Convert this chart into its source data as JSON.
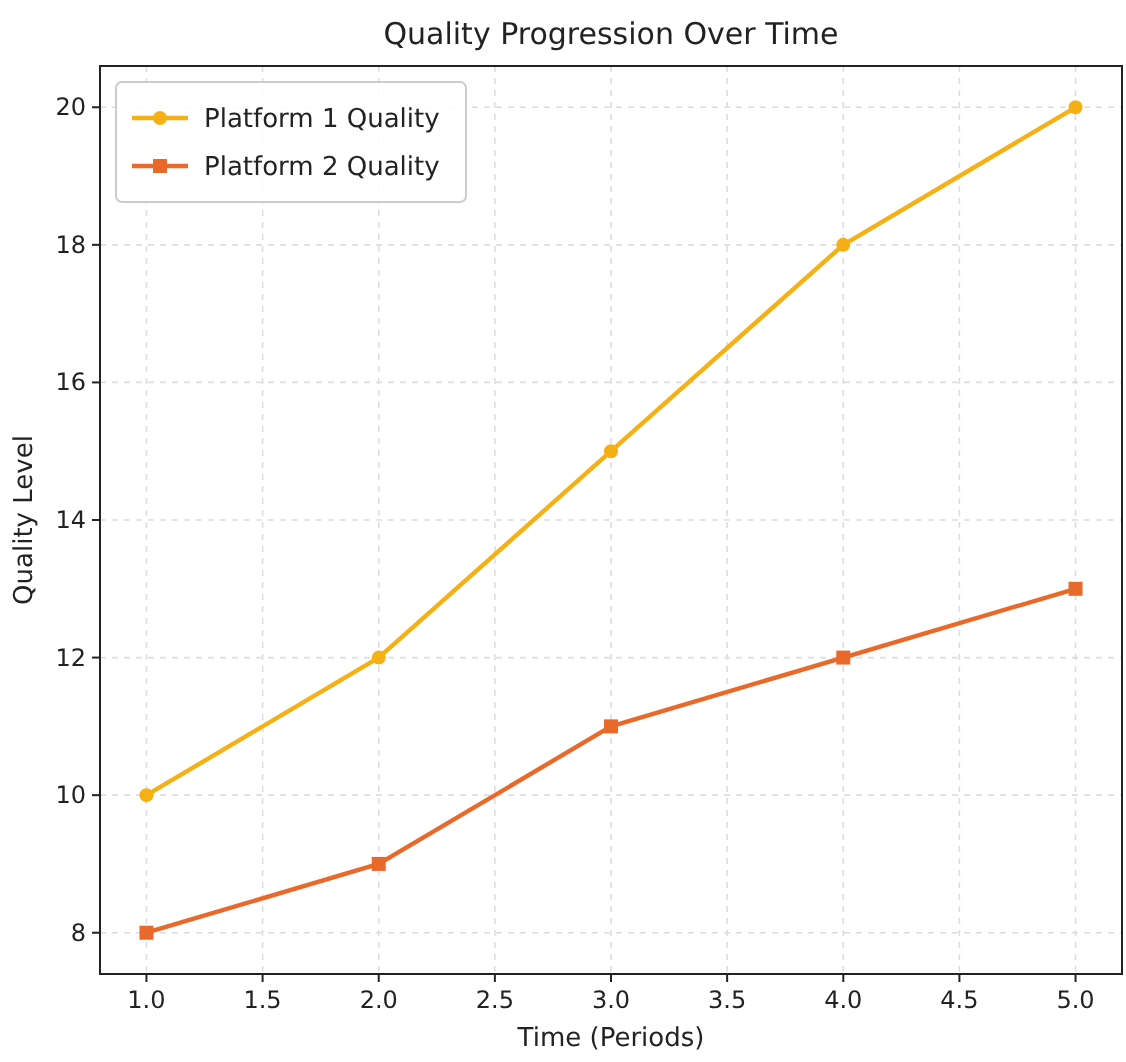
{
  "chart_data": {
    "type": "line",
    "title": "Quality Progression Over Time",
    "xlabel": "Time (Periods)",
    "ylabel": "Quality Level",
    "x": [
      1,
      2,
      3,
      4,
      5
    ],
    "series": [
      {
        "name": "Platform 1 Quality",
        "color": "#f4b014",
        "values": [
          10,
          12,
          15,
          18,
          20
        ],
        "marker": "circle"
      },
      {
        "name": "Platform 2 Quality",
        "color": "#e8692a",
        "values": [
          8,
          9,
          11,
          12,
          13
        ],
        "marker": "square"
      }
    ],
    "xlim": [
      0.8,
      5.2
    ],
    "xticks": [
      {
        "value": 1,
        "label": "1.0"
      },
      {
        "value": 1.5,
        "label": "1.5"
      },
      {
        "value": 2,
        "label": "2.0"
      },
      {
        "value": 2.5,
        "label": "2.5"
      },
      {
        "value": 3,
        "label": "3.0"
      },
      {
        "value": 3.5,
        "label": "3.5"
      },
      {
        "value": 4,
        "label": "4.0"
      },
      {
        "value": 4.5,
        "label": "4.5"
      },
      {
        "value": 5,
        "label": "5.0"
      }
    ],
    "ylim": [
      7.4,
      20.6
    ],
    "yticks": [
      8,
      10,
      12,
      14,
      16,
      18,
      20
    ],
    "grid": true,
    "legend": "top left",
    "line_style": "solid"
  }
}
